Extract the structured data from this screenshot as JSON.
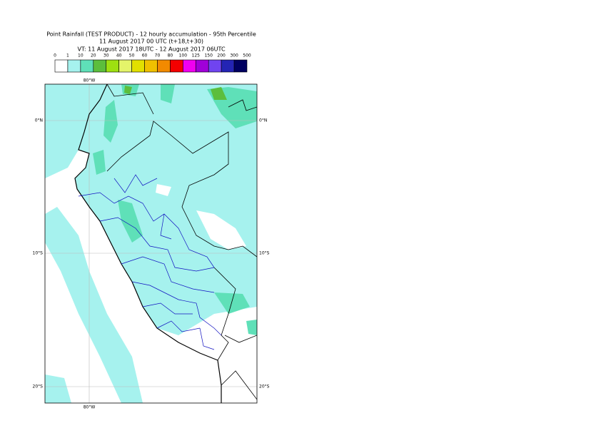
{
  "header": {
    "lines": [
      "Point Rainfall (TEST PRODUCT) - 12 hourly accumulation - 95th Percentile",
      "11 August 2017 00 UTC (t+18,t+30)",
      "VT: 11 August 2017 18UTC - 12 August 2017 06UTC"
    ]
  },
  "legend": {
    "labels": [
      0,
      1,
      10,
      20,
      30,
      40,
      50,
      60,
      70,
      80,
      100,
      125,
      150,
      200,
      300,
      500
    ],
    "colors": [
      "#ffffff",
      "#a6f2ee",
      "#5fe0b8",
      "#5cbe3c",
      "#9ee010",
      "#e4f46a",
      "#e2e000",
      "#f0c000",
      "#f28a00",
      "#f40000",
      "#f000f0",
      "#a000d8",
      "#7044f0",
      "#2424b4",
      "#000060"
    ]
  },
  "map": {
    "lon_labels": [
      "80°W",
      "80°W"
    ],
    "lat_labels": [
      "0°N",
      "10°S",
      "20°S"
    ]
  }
}
